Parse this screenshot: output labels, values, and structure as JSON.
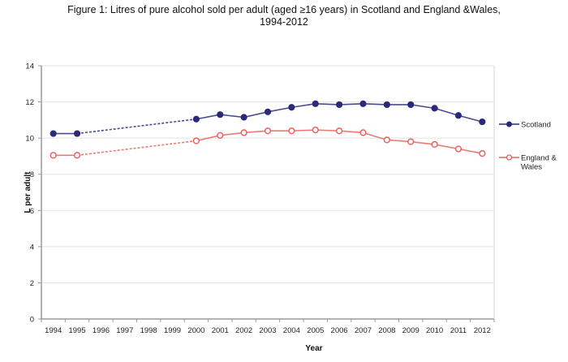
{
  "title_line1": "Figure 1: Litres of pure alcohol sold per adult (aged ≥16 years) in Scotland and England &Wales,",
  "title_line2": "1994-2012",
  "chart_data": {
    "type": "line",
    "title": "Figure 1: Litres of pure alcohol sold per adult (aged ≥16 years) in Scotland and England &Wales, 1994-2012",
    "xlabel": "Year",
    "ylabel": "L per adult",
    "ylim": [
      0,
      14
    ],
    "yticks": [
      0,
      2,
      4,
      6,
      8,
      10,
      12,
      14
    ],
    "x": [
      "1994",
      "1995",
      "1996",
      "1997",
      "1998",
      "1999",
      "2000",
      "2001",
      "2002",
      "2003",
      "2004",
      "2005",
      "2006",
      "2007",
      "2008",
      "2009",
      "2010",
      "2011",
      "2012"
    ],
    "grid": true,
    "legend_position": "right",
    "note": "1996-1999 have no data points; dashed line interpolates 1995 to 2000",
    "series": [
      {
        "name": "Scotland",
        "color": "#2b2a7a",
        "marker": "filled-circle",
        "values": [
          10.25,
          10.25,
          null,
          null,
          null,
          null,
          11.05,
          11.3,
          11.15,
          11.45,
          11.7,
          11.9,
          11.85,
          11.9,
          11.85,
          11.85,
          11.65,
          11.25,
          10.9
        ]
      },
      {
        "name": "England & Wales",
        "legend_lines": [
          "England &",
          "Wales"
        ],
        "color": "#e8635e",
        "marker": "open-circle",
        "values": [
          9.05,
          9.05,
          null,
          null,
          null,
          null,
          9.85,
          10.15,
          10.3,
          10.4,
          10.4,
          10.45,
          10.4,
          10.3,
          9.9,
          9.8,
          9.65,
          9.4,
          9.15
        ]
      }
    ]
  }
}
